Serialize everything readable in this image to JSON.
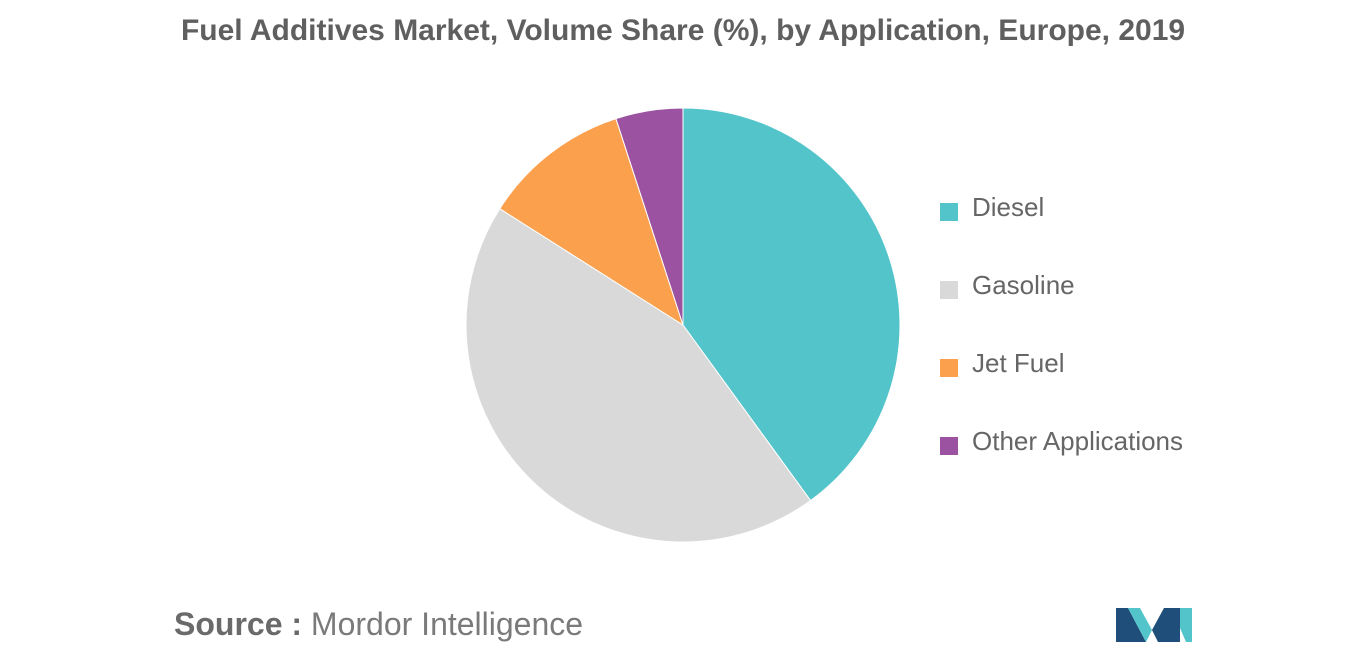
{
  "chart_data": {
    "type": "pie",
    "title": "Fuel Additives Market, Volume Share (%), by Application, Europe, 2019",
    "series": [
      {
        "name": "Diesel",
        "value": 40,
        "color": "#52c4ca"
      },
      {
        "name": "Gasoline",
        "value": 44,
        "color": "#d9d9d9"
      },
      {
        "name": "Jet Fuel",
        "value": 11,
        "color": "#fba14e"
      },
      {
        "name": "Other Applications",
        "value": 5,
        "color": "#9b52a0"
      }
    ],
    "start_angle_deg": 0,
    "direction": "clockwise",
    "legend_position": "right"
  },
  "source": {
    "label": "Source :",
    "text": "Mordor Intelligence"
  },
  "logo": {
    "icon": "mordor-intelligence-logo-icon",
    "colors": [
      "#1e4e79",
      "#52c4ca"
    ]
  }
}
